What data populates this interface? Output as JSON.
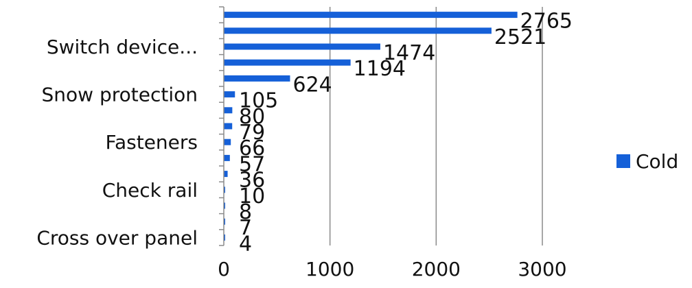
{
  "chart_data": {
    "type": "bar",
    "orientation": "horizontal",
    "categories": [
      "",
      "",
      "Switch device...",
      "",
      "",
      "Snow protection",
      "",
      "",
      "Fasteners",
      "",
      "",
      "Check rail",
      "",
      "",
      "Cross over panel"
    ],
    "series": [
      {
        "name": "Cold",
        "color": "#1560D8",
        "values": [
          2765,
          2521,
          1474,
          1194,
          624,
          105,
          80,
          79,
          66,
          57,
          36,
          10,
          8,
          7,
          4
        ]
      }
    ],
    "xlim": [
      0,
      3000
    ],
    "x_ticks": [
      "0",
      "1000",
      "2000",
      "3000"
    ],
    "grid": "vertical",
    "legend_position": "right"
  }
}
